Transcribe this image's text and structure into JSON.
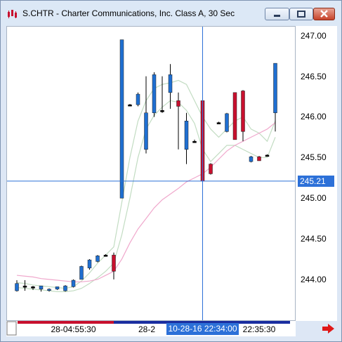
{
  "window": {
    "title": "S.CHTR - Charter Communications, Inc. Class A, 30 Sec",
    "minimize_icon": "minimize-icon",
    "maximize_icon": "maximize-icon",
    "close_icon": "close-icon"
  },
  "chart_data": {
    "type": "candlestick",
    "symbol": "S.CHTR",
    "interval": "30 Sec",
    "ylim": [
      243.8,
      247.05
    ],
    "y_ticks": [
      "247.00",
      "246.50",
      "246.00",
      "245.50",
      "245.00",
      "244.50",
      "244.00"
    ],
    "y_tick_values": [
      247.0,
      246.5,
      246.0,
      245.5,
      245.0,
      244.5,
      244.0
    ],
    "crosshair_price": "245.21",
    "crosshair_price_value": 245.21,
    "crosshair_bar": 23,
    "x_labels": [
      "28-04:55:30",
      "28-2",
      "10-28-16 22:34:00",
      "22:35:30"
    ],
    "x_label_bars": [
      7,
      16,
      23,
      30
    ],
    "up_color": "#1f6fd1",
    "down_color": "#c8102e",
    "flat_color": "#000000",
    "candles": [
      {
        "o": 243.86,
        "h": 243.99,
        "l": 243.85,
        "c": 243.95
      },
      {
        "o": 243.92,
        "h": 243.99,
        "l": 243.86,
        "c": 243.92
      },
      {
        "o": 243.91,
        "h": 243.92,
        "l": 243.87,
        "c": 243.91
      },
      {
        "o": 243.88,
        "h": 243.92,
        "l": 243.85,
        "c": 243.92
      },
      {
        "o": 243.87,
        "h": 243.89,
        "l": 243.85,
        "c": 243.88
      },
      {
        "o": 243.88,
        "h": 243.91,
        "l": 243.87,
        "c": 243.91
      },
      {
        "o": 243.86,
        "h": 243.93,
        "l": 243.85,
        "c": 243.92
      },
      {
        "o": 243.91,
        "h": 244.0,
        "l": 243.9,
        "c": 243.99
      },
      {
        "o": 244.0,
        "h": 244.17,
        "l": 244.0,
        "c": 244.16
      },
      {
        "o": 244.14,
        "h": 244.25,
        "l": 244.12,
        "c": 244.24
      },
      {
        "o": 244.22,
        "h": 244.3,
        "l": 244.21,
        "c": 244.29
      },
      {
        "o": 244.3,
        "h": 244.31,
        "l": 244.28,
        "c": 244.3
      },
      {
        "o": 244.3,
        "h": 244.33,
        "l": 244.0,
        "c": 244.1
      },
      {
        "o": 245.0,
        "h": 246.95,
        "l": 245.0,
        "c": 246.95
      },
      {
        "o": 246.15,
        "h": 246.16,
        "l": 246.14,
        "c": 246.15
      },
      {
        "o": 246.15,
        "h": 246.3,
        "l": 246.13,
        "c": 246.28
      },
      {
        "o": 245.6,
        "h": 246.5,
        "l": 245.55,
        "c": 246.05
      },
      {
        "o": 246.05,
        "h": 246.55,
        "l": 246.0,
        "c": 246.52
      },
      {
        "o": 246.08,
        "h": 246.5,
        "l": 246.05,
        "c": 246.08
      },
      {
        "o": 246.3,
        "h": 246.65,
        "l": 246.1,
        "c": 246.52
      },
      {
        "o": 246.2,
        "h": 246.3,
        "l": 245.6,
        "c": 246.13
      },
      {
        "o": 245.6,
        "h": 246.05,
        "l": 245.42,
        "c": 245.95
      },
      {
        "o": 245.7,
        "h": 245.72,
        "l": 245.68,
        "c": 245.7
      },
      {
        "o": 246.2,
        "h": 246.3,
        "l": 245.17,
        "c": 245.21
      },
      {
        "o": 245.42,
        "h": 245.43,
        "l": 245.29,
        "c": 245.3
      },
      {
        "o": 245.93,
        "h": 245.94,
        "l": 245.92,
        "c": 245.93
      },
      {
        "o": 245.82,
        "h": 246.05,
        "l": 245.81,
        "c": 246.04
      },
      {
        "o": 246.3,
        "h": 246.3,
        "l": 245.72,
        "c": 245.72
      },
      {
        "o": 246.32,
        "h": 246.33,
        "l": 245.7,
        "c": 245.82
      },
      {
        "o": 245.45,
        "h": 245.52,
        "l": 245.44,
        "c": 245.51
      },
      {
        "o": 245.51,
        "h": 245.52,
        "l": 245.46,
        "c": 245.46
      },
      {
        "o": 245.53,
        "h": 245.54,
        "l": 245.52,
        "c": 245.53
      },
      {
        "o": 246.05,
        "h": 246.66,
        "l": 245.82,
        "c": 246.66
      }
    ],
    "series": [
      {
        "color": "#c2dcc2",
        "values": [
          243.96,
          243.95,
          243.93,
          243.92,
          243.91,
          243.9,
          243.89,
          243.91,
          243.98,
          244.08,
          244.2,
          244.3,
          244.4,
          244.95,
          245.5,
          245.95,
          246.2,
          246.35,
          246.4,
          246.42,
          246.45,
          246.4,
          246.2,
          246.0,
          245.85,
          245.75,
          245.85,
          245.95,
          246.0,
          245.85,
          245.8,
          245.7,
          245.95
        ]
      },
      {
        "color": "#c2dcc2",
        "values": [
          243.9,
          243.89,
          243.88,
          243.87,
          243.86,
          243.85,
          243.85,
          243.86,
          243.89,
          243.95,
          244.02,
          244.1,
          244.2,
          244.55,
          245.0,
          245.5,
          245.85,
          246.02,
          246.12,
          246.2,
          246.18,
          246.08,
          245.92,
          245.6,
          245.45,
          245.55,
          245.65,
          245.65,
          245.6,
          245.55,
          245.5,
          245.5,
          245.75
        ]
      },
      {
        "color": "#f0a8cc",
        "values": [
          244.05,
          244.04,
          244.03,
          244.01,
          244.0,
          243.99,
          243.98,
          243.97,
          243.97,
          243.98,
          244.0,
          244.05,
          244.1,
          244.25,
          244.45,
          244.62,
          244.75,
          244.88,
          244.98,
          245.05,
          245.12,
          245.2,
          245.25,
          245.3,
          245.38,
          245.48,
          245.58,
          245.65,
          245.7,
          245.75,
          245.8,
          245.85,
          245.93
        ]
      }
    ]
  }
}
